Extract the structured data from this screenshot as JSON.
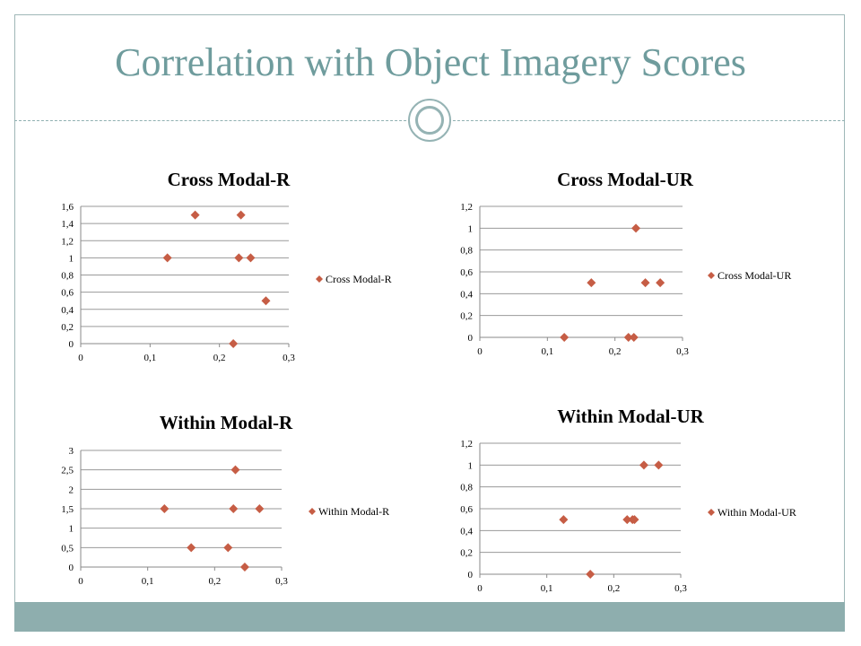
{
  "slide": {
    "title": "Correlation with Object Imagery Scores",
    "title_color": "#6f9c9d",
    "accent_color": "#8eaeae",
    "marker_color": "#c65d45"
  },
  "chart_data": [
    {
      "type": "scatter",
      "title": "Cross Modal-R",
      "legend": "Cross Modal-R",
      "legend_position": "right",
      "grid": true,
      "xlim": [
        0,
        0.3
      ],
      "ylim": [
        0,
        1.6
      ],
      "x_ticks": [
        "0",
        "0,1",
        "0,2",
        "0,3"
      ],
      "y_ticks": [
        "0",
        "0,2",
        "0,4",
        "0,6",
        "0,8",
        "1",
        "1,2",
        "1,4",
        "1,6"
      ],
      "points": [
        {
          "x": 0.125,
          "y": 1
        },
        {
          "x": 0.165,
          "y": 1.5
        },
        {
          "x": 0.22,
          "y": 0
        },
        {
          "x": 0.228,
          "y": 1
        },
        {
          "x": 0.231,
          "y": 1.5
        },
        {
          "x": 0.245,
          "y": 1
        },
        {
          "x": 0.267,
          "y": 0.5
        }
      ]
    },
    {
      "type": "scatter",
      "title": "Cross Modal-UR",
      "legend": "Cross Modal-UR",
      "legend_position": "right",
      "grid": true,
      "xlim": [
        0,
        0.3
      ],
      "ylim": [
        0,
        1.2
      ],
      "x_ticks": [
        "0",
        "0,1",
        "0,2",
        "0,3"
      ],
      "y_ticks": [
        "0",
        "0,2",
        "0,4",
        "0,6",
        "0,8",
        "1",
        "1,2"
      ],
      "points": [
        {
          "x": 0.125,
          "y": 0
        },
        {
          "x": 0.165,
          "y": 0.5
        },
        {
          "x": 0.22,
          "y": 0
        },
        {
          "x": 0.228,
          "y": 0
        },
        {
          "x": 0.231,
          "y": 1
        },
        {
          "x": 0.245,
          "y": 0.5
        },
        {
          "x": 0.267,
          "y": 0.5
        }
      ]
    },
    {
      "type": "scatter",
      "title": "Within Modal-R",
      "legend": "Within Modal-R",
      "legend_position": "right",
      "grid": true,
      "xlim": [
        0,
        0.3
      ],
      "ylim": [
        0,
        3
      ],
      "x_ticks": [
        "0",
        "0,1",
        "0,2",
        "0,3"
      ],
      "y_ticks": [
        "0",
        "0,5",
        "1",
        "1,5",
        "2",
        "2,5",
        "3"
      ],
      "points": [
        {
          "x": 0.125,
          "y": 1.5
        },
        {
          "x": 0.165,
          "y": 0.5
        },
        {
          "x": 0.22,
          "y": 0.5
        },
        {
          "x": 0.228,
          "y": 1.5
        },
        {
          "x": 0.231,
          "y": 2.5
        },
        {
          "x": 0.245,
          "y": 0
        },
        {
          "x": 0.267,
          "y": 1.5
        }
      ]
    },
    {
      "type": "scatter",
      "title": "Within Modal-UR",
      "legend": "Within Modal-UR",
      "legend_position": "right",
      "grid": true,
      "xlim": [
        0,
        0.3
      ],
      "ylim": [
        0,
        1.2
      ],
      "x_ticks": [
        "0",
        "0,1",
        "0,2",
        "0,3"
      ],
      "y_ticks": [
        "0",
        "0,2",
        "0,4",
        "0,6",
        "0,8",
        "1",
        "1,2"
      ],
      "points": [
        {
          "x": 0.125,
          "y": 0.5
        },
        {
          "x": 0.165,
          "y": 0
        },
        {
          "x": 0.22,
          "y": 0.5
        },
        {
          "x": 0.228,
          "y": 0.5
        },
        {
          "x": 0.231,
          "y": 0.5
        },
        {
          "x": 0.245,
          "y": 1
        },
        {
          "x": 0.267,
          "y": 1
        }
      ]
    }
  ]
}
